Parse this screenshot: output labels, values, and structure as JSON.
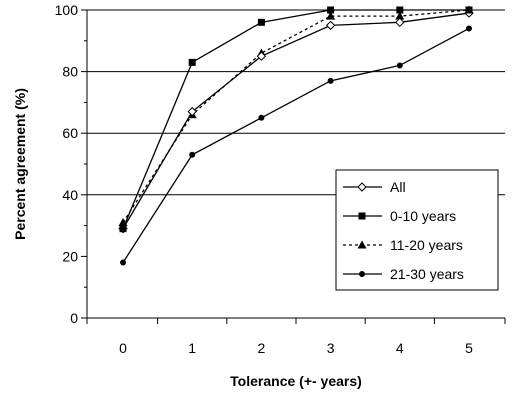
{
  "chart_data": {
    "type": "line",
    "title": "",
    "xlabel": "Tolerance (+- years)",
    "ylabel": "Percent agreement (%)",
    "x": [
      0,
      1,
      2,
      3,
      4,
      5
    ],
    "x_tick_labels": [
      "0",
      "1",
      "2",
      "3",
      "4",
      "5"
    ],
    "y_tick_labels": [
      "0",
      "20",
      "40",
      "60",
      "80",
      "100"
    ],
    "ylim": [
      0,
      100
    ],
    "grid": "horizontal major gridlines at 40, 60, 80, 100",
    "legend_position": "lower-right",
    "series": [
      {
        "name": "All",
        "marker": "diamond-open",
        "dash": "solid",
        "values": [
          29,
          67,
          85,
          95,
          96,
          99
        ]
      },
      {
        "name": "0-10 years",
        "marker": "square",
        "dash": "solid",
        "values": [
          29,
          83,
          96,
          100,
          100,
          100
        ]
      },
      {
        "name": "11-20 years",
        "marker": "triangle",
        "dash": "dashed",
        "values": [
          31,
          66,
          86,
          98,
          98,
          100
        ]
      },
      {
        "name": "21-30 years",
        "marker": "circle",
        "dash": "solid",
        "values": [
          18,
          53,
          65,
          77,
          82,
          94
        ]
      }
    ]
  }
}
